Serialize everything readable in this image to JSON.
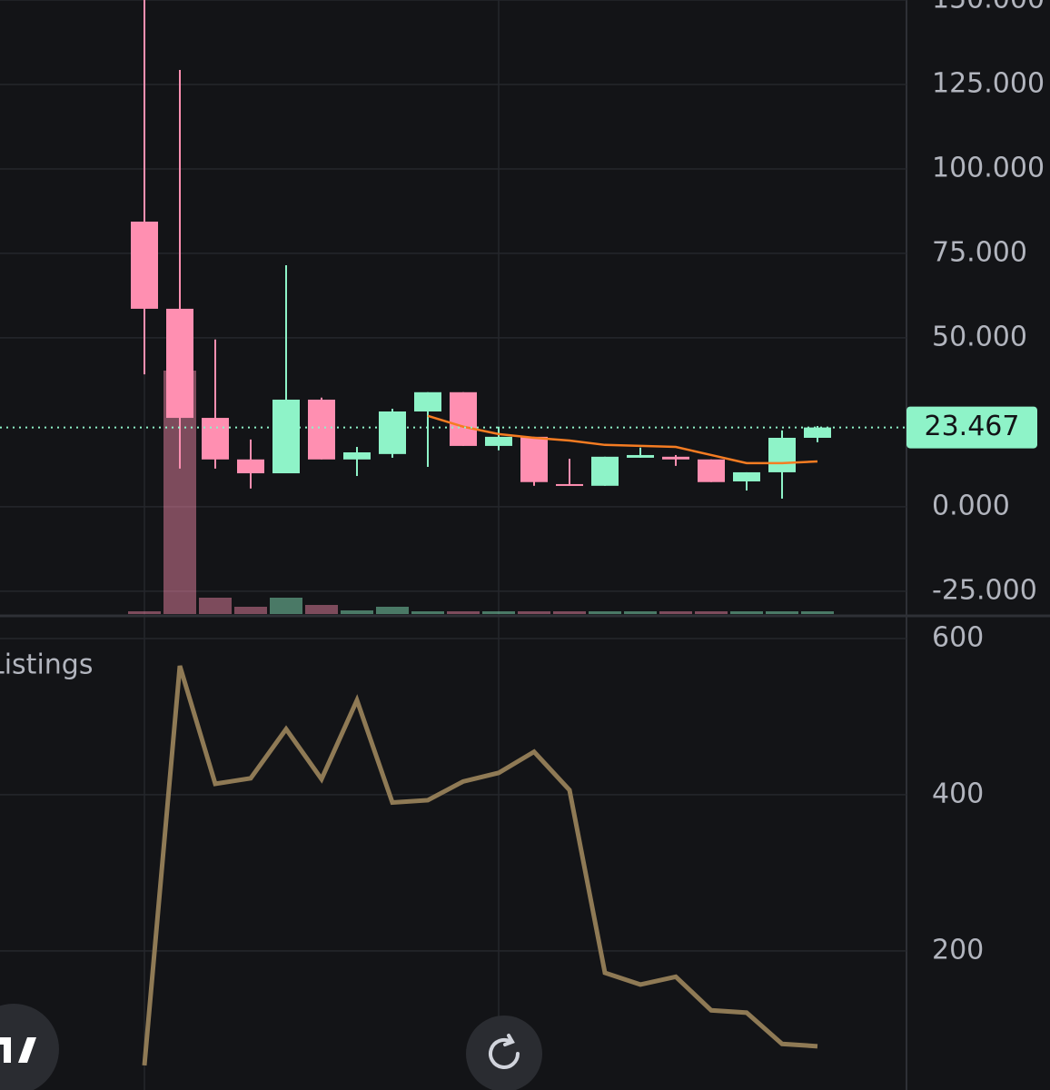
{
  "chart_data": [
    {
      "type": "candlestick",
      "open": [
        84.4,
        58.6,
        26.3,
        14.0,
        9.9,
        31.7,
        14.0,
        15.6,
        28.2,
        33.9,
        18.0,
        20.7,
        6.7,
        6.2,
        14.5,
        14.8,
        14.0,
        7.5,
        10.2,
        20.4
      ],
      "high": [
        150,
        129.3,
        49.5,
        19.9,
        71.5,
        32.3,
        17.7,
        29.0,
        33.9,
        33.9,
        23.7,
        20.7,
        14.2,
        14.8,
        17.5,
        15.3,
        14.0,
        10.2,
        22.6,
        23.9
      ],
      "low": [
        39.2,
        11.3,
        11.3,
        5.4,
        9.9,
        14.0,
        9.1,
        14.5,
        11.8,
        18.0,
        16.7,
        6.2,
        6.2,
        6.2,
        14.5,
        12.1,
        7.3,
        4.8,
        2.4,
        19.1
      ],
      "close": [
        58.6,
        26.3,
        14.0,
        9.9,
        31.7,
        14.0,
        16.1,
        28.2,
        33.9,
        18.0,
        20.7,
        7.3,
        6.2,
        14.8,
        15.3,
        14.0,
        7.3,
        10.2,
        20.4,
        23.467
      ],
      "volume": [
        3,
        268,
        18,
        8,
        18,
        10,
        4,
        8,
        3,
        3,
        3,
        3,
        3,
        3,
        3,
        3,
        3,
        3,
        3,
        3
      ],
      "ma": [
        null,
        null,
        null,
        null,
        null,
        null,
        null,
        null,
        26.9,
        23.7,
        21.5,
        20.4,
        19.6,
        18.3,
        18.0,
        17.7,
        15.3,
        12.9,
        12.9,
        13.4
      ],
      "last_price": 23.467,
      "ylim": [
        -32.3,
        150
      ],
      "yticks": [
        {
          "value": 150,
          "label": "150.000"
        },
        {
          "value": 125,
          "label": "125.000"
        },
        {
          "value": 100,
          "label": "100.000"
        },
        {
          "value": 75,
          "label": "75.000"
        },
        {
          "value": 50,
          "label": "50.000"
        },
        {
          "value": 0,
          "label": "0.000"
        },
        {
          "value": -25,
          "label": "-25.000"
        }
      ],
      "up_color": "#8ef3c8",
      "down_color": "#ff8fb1",
      "ma_color": "#f57c22"
    },
    {
      "type": "line",
      "title": "Listings",
      "values": [
        53.5,
        565,
        414,
        421,
        484,
        420,
        521,
        390,
        393,
        417,
        428,
        455,
        406,
        172,
        157,
        167,
        124,
        121,
        81,
        78
      ],
      "ylim": [
        22,
        629
      ],
      "yticks": [
        200,
        400,
        600
      ],
      "color": "#8f7a55"
    }
  ]
}
